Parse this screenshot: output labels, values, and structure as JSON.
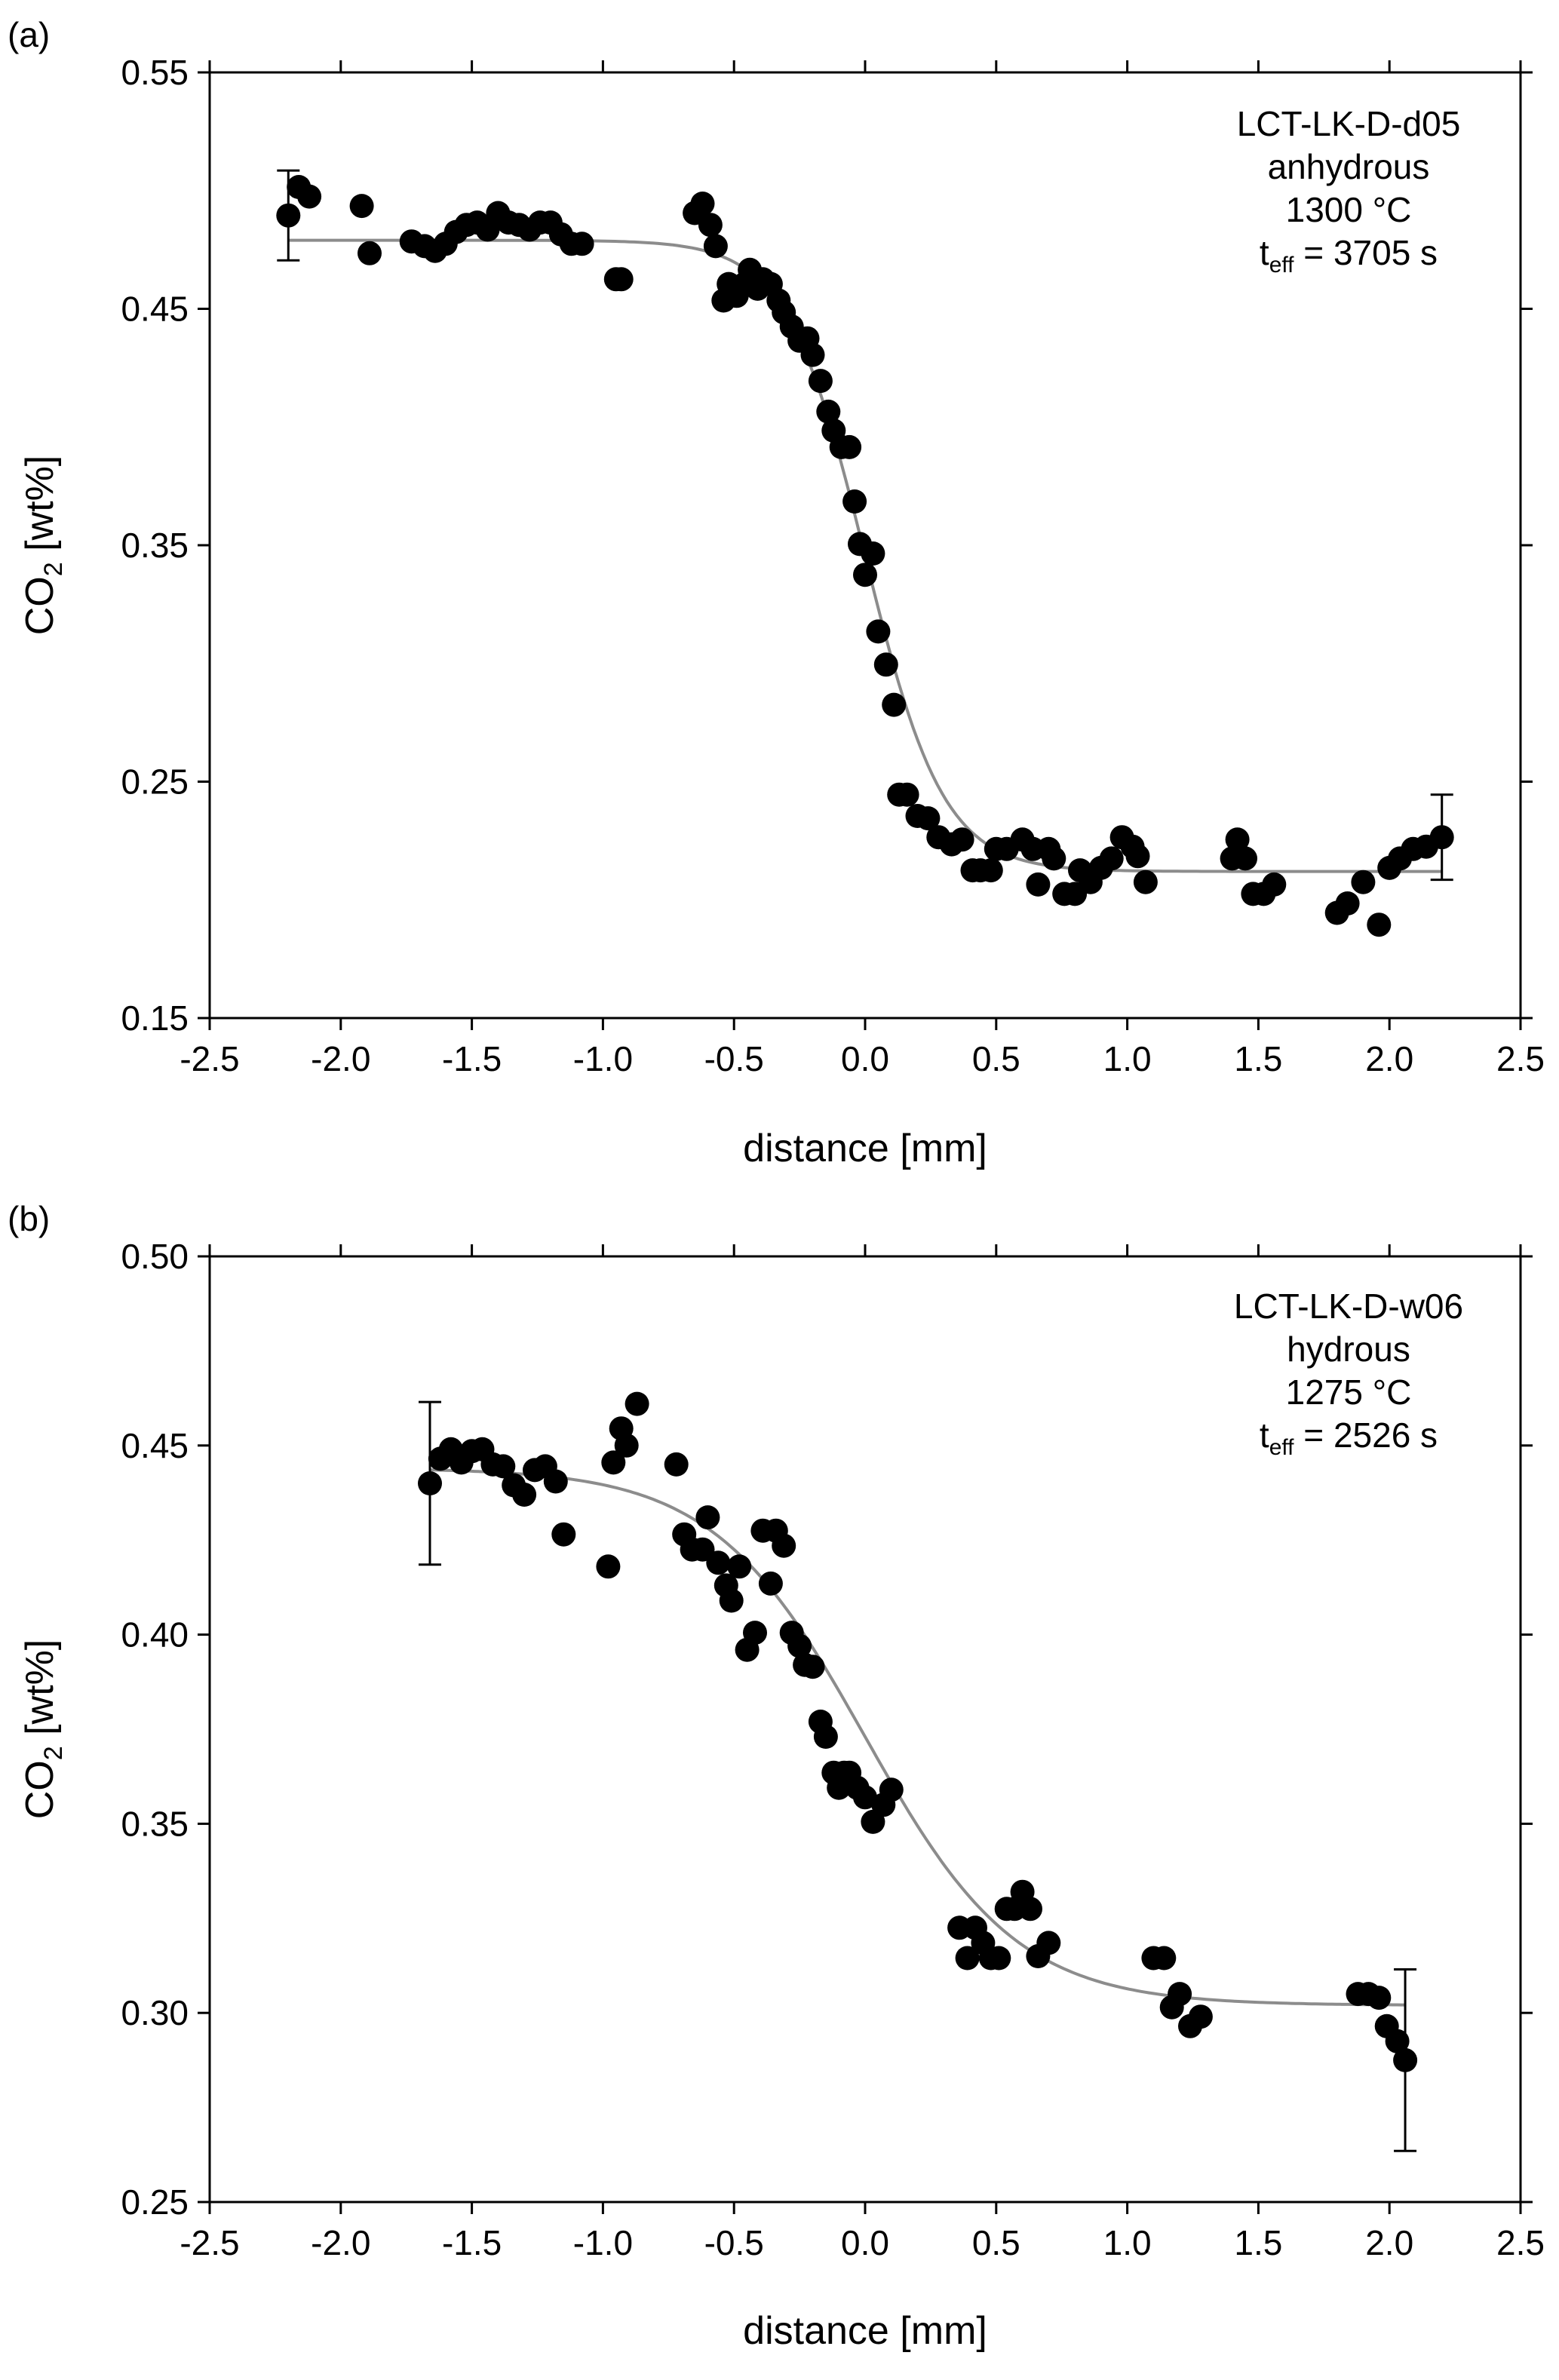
{
  "chart_data": [
    {
      "type": "scatter",
      "panel_label": "(a)",
      "title": "",
      "xlabel": "distance [mm]",
      "ylabel_main": "CO",
      "ylabel_sub": "2",
      "ylabel_unit": " [wt%]",
      "xlim": [
        -2.5,
        2.5
      ],
      "ylim": [
        0.15,
        0.55
      ],
      "xticks": [
        -2.5,
        -2.0,
        -1.5,
        -1.0,
        -0.5,
        0.0,
        0.5,
        1.0,
        1.5,
        2.0,
        2.5
      ],
      "xtick_labels": [
        "-2.5",
        "-2.0",
        "-1.5",
        "-1.0",
        "-0.5",
        "0.0",
        "0.5",
        "1.0",
        "1.5",
        "2.0",
        "2.5"
      ],
      "yticks": [
        0.15,
        0.25,
        0.35,
        0.45,
        0.55
      ],
      "ytick_labels": [
        "0.15",
        "0.25",
        "0.35",
        "0.45",
        "0.55"
      ],
      "annotation": {
        "sample": "LCT-LK-D-d05",
        "condition": "anhydrous",
        "temperature": "1300 °C",
        "time_prefix": "t",
        "time_sub": "eff",
        "time_value": " = 3705 s"
      },
      "fit": {
        "name": "diffusion fit",
        "x_range": [
          -2.2,
          2.2
        ],
        "plateau_left": 0.479,
        "plateau_right": 0.212,
        "center": 0.0,
        "width": 0.3
      },
      "error_bars": [
        {
          "x": -2.2,
          "y": 0.4895,
          "low": 0.4705,
          "high": 0.5085
        },
        {
          "x": 2.2,
          "y": 0.2265,
          "low": 0.2085,
          "high": 0.2445
        }
      ],
      "series": [
        {
          "name": "measured CO2",
          "points": [
            [
              -2.2,
              0.4895
            ],
            [
              -2.16,
              0.5015
            ],
            [
              -2.12,
              0.4975
            ],
            [
              -1.92,
              0.4935
            ],
            [
              -1.89,
              0.4735
            ],
            [
              -1.73,
              0.4785
            ],
            [
              -1.68,
              0.4765
            ],
            [
              -1.64,
              0.4745
            ],
            [
              -1.6,
              0.4775
            ],
            [
              -1.56,
              0.4825
            ],
            [
              -1.52,
              0.4855
            ],
            [
              -1.48,
              0.4865
            ],
            [
              -1.44,
              0.4835
            ],
            [
              -1.4,
              0.4905
            ],
            [
              -1.36,
              0.4865
            ],
            [
              -1.32,
              0.4855
            ],
            [
              -1.28,
              0.4835
            ],
            [
              -1.24,
              0.4865
            ],
            [
              -1.2,
              0.4865
            ],
            [
              -1.16,
              0.4815
            ],
            [
              -1.12,
              0.4775
            ],
            [
              -1.08,
              0.4775
            ],
            [
              -0.95,
              0.4625
            ],
            [
              -0.93,
              0.4625
            ],
            [
              -0.65,
              0.4905
            ],
            [
              -0.62,
              0.4945
            ],
            [
              -0.59,
              0.4855
            ],
            [
              -0.57,
              0.4765
            ],
            [
              -0.54,
              0.4535
            ],
            [
              -0.52,
              0.4605
            ],
            [
              -0.49,
              0.4555
            ],
            [
              -0.46,
              0.4605
            ],
            [
              -0.44,
              0.4665
            ],
            [
              -0.41,
              0.4585
            ],
            [
              -0.39,
              0.4625
            ],
            [
              -0.36,
              0.4605
            ],
            [
              -0.33,
              0.4535
            ],
            [
              -0.31,
              0.4485
            ],
            [
              -0.28,
              0.4425
            ],
            [
              -0.25,
              0.4365
            ],
            [
              -0.22,
              0.4375
            ],
            [
              -0.2,
              0.4305
            ],
            [
              -0.17,
              0.4195
            ],
            [
              -0.14,
              0.4065
            ],
            [
              -0.12,
              0.3985
            ],
            [
              -0.09,
              0.3915
            ],
            [
              -0.06,
              0.3915
            ],
            [
              -0.04,
              0.3685
            ],
            [
              -0.02,
              0.3505
            ],
            [
              0.0,
              0.3375
            ],
            [
              0.03,
              0.3465
            ],
            [
              0.05,
              0.3135
            ],
            [
              0.08,
              0.2995
            ],
            [
              0.11,
              0.2825
            ],
            [
              0.13,
              0.2445
            ],
            [
              0.16,
              0.2445
            ],
            [
              0.2,
              0.2355
            ],
            [
              0.24,
              0.2345
            ],
            [
              0.28,
              0.2265
            ],
            [
              0.33,
              0.2235
            ],
            [
              0.37,
              0.2255
            ],
            [
              0.41,
              0.2125
            ],
            [
              0.44,
              0.2125
            ],
            [
              0.48,
              0.2125
            ],
            [
              0.5,
              0.2215
            ],
            [
              0.54,
              0.2215
            ],
            [
              0.6,
              0.2255
            ],
            [
              0.64,
              0.2215
            ],
            [
              0.66,
              0.2065
            ],
            [
              0.7,
              0.2215
            ],
            [
              0.72,
              0.2175
            ],
            [
              0.76,
              0.2025
            ],
            [
              0.8,
              0.2025
            ],
            [
              0.82,
              0.2125
            ],
            [
              0.86,
              0.2075
            ],
            [
              0.9,
              0.2135
            ],
            [
              0.94,
              0.2175
            ],
            [
              0.98,
              0.2265
            ],
            [
              1.02,
              0.2225
            ],
            [
              1.04,
              0.2185
            ],
            [
              1.07,
              0.2075
            ],
            [
              1.4,
              0.2175
            ],
            [
              1.42,
              0.2255
            ],
            [
              1.45,
              0.2175
            ],
            [
              1.48,
              0.2025
            ],
            [
              1.52,
              0.2025
            ],
            [
              1.56,
              0.2065
            ],
            [
              1.8,
              0.1945
            ],
            [
              1.84,
              0.1985
            ],
            [
              1.9,
              0.2075
            ],
            [
              1.96,
              0.1895
            ],
            [
              2.0,
              0.2135
            ],
            [
              2.04,
              0.2175
            ],
            [
              2.09,
              0.2215
            ],
            [
              2.14,
              0.2225
            ],
            [
              2.2,
              0.2265
            ]
          ]
        }
      ]
    },
    {
      "type": "scatter",
      "panel_label": "(b)",
      "title": "",
      "xlabel": "distance [mm]",
      "ylabel_main": "CO",
      "ylabel_sub": "2",
      "ylabel_unit": " [wt%]",
      "xlim": [
        -2.5,
        2.5
      ],
      "ylim": [
        0.25,
        0.5
      ],
      "xticks": [
        -2.5,
        -2.0,
        -1.5,
        -1.0,
        -0.5,
        0.0,
        0.5,
        1.0,
        1.5,
        2.0,
        2.5
      ],
      "xtick_labels": [
        "-2.5",
        "-2.0",
        "-1.5",
        "-1.0",
        "-0.5",
        "0.0",
        "0.5",
        "1.0",
        "1.5",
        "2.0",
        "2.5"
      ],
      "yticks": [
        0.25,
        0.3,
        0.35,
        0.4,
        0.45,
        0.5
      ],
      "ytick_labels": [
        "0.25",
        "0.30",
        "0.35",
        "0.40",
        "0.45",
        "0.50"
      ],
      "annotation": {
        "sample": "LCT-LK-D-w06",
        "condition": "hydrous",
        "temperature": "1275 °C",
        "time_prefix": "t",
        "time_sub": "eff",
        "time_value": " = 2526 s"
      },
      "fit": {
        "name": "diffusion fit",
        "x_range": [
          -1.66,
          2.06
        ],
        "plateau_left": 0.444,
        "plateau_right": 0.302,
        "center": 0.0,
        "width": 0.58
      },
      "error_bars": [
        {
          "x": -1.66,
          "y": 0.44,
          "low": 0.4185,
          "high": 0.4615
        },
        {
          "x": 2.06,
          "y": 0.2875,
          "low": 0.2635,
          "high": 0.3115
        }
      ],
      "series": [
        {
          "name": "measured CO2",
          "points": [
            [
              -1.66,
              0.44
            ],
            [
              -1.62,
              0.4465
            ],
            [
              -1.58,
              0.449
            ],
            [
              -1.54,
              0.4455
            ],
            [
              -1.5,
              0.4485
            ],
            [
              -1.46,
              0.449
            ],
            [
              -1.42,
              0.445
            ],
            [
              -1.38,
              0.4445
            ],
            [
              -1.34,
              0.4395
            ],
            [
              -1.3,
              0.437
            ],
            [
              -1.26,
              0.4435
            ],
            [
              -1.22,
              0.4445
            ],
            [
              -1.18,
              0.4405
            ],
            [
              -1.15,
              0.4265
            ],
            [
              -0.98,
              0.418
            ],
            [
              -0.96,
              0.4455
            ],
            [
              -0.93,
              0.4545
            ],
            [
              -0.91,
              0.45
            ],
            [
              -0.87,
              0.461
            ],
            [
              -0.72,
              0.445
            ],
            [
              -0.69,
              0.4265
            ],
            [
              -0.66,
              0.4225
            ],
            [
              -0.62,
              0.4225
            ],
            [
              -0.6,
              0.431
            ],
            [
              -0.56,
              0.419
            ],
            [
              -0.53,
              0.413
            ],
            [
              -0.51,
              0.409
            ],
            [
              -0.48,
              0.418
            ],
            [
              -0.45,
              0.396
            ],
            [
              -0.42,
              0.4005
            ],
            [
              -0.39,
              0.4275
            ],
            [
              -0.36,
              0.4135
            ],
            [
              -0.34,
              0.4275
            ],
            [
              -0.31,
              0.4235
            ],
            [
              -0.28,
              0.4005
            ],
            [
              -0.25,
              0.397
            ],
            [
              -0.23,
              0.392
            ],
            [
              -0.2,
              0.3915
            ],
            [
              -0.17,
              0.377
            ],
            [
              -0.15,
              0.373
            ],
            [
              -0.12,
              0.3635
            ],
            [
              -0.1,
              0.3595
            ],
            [
              -0.08,
              0.3635
            ],
            [
              -0.06,
              0.3635
            ],
            [
              -0.03,
              0.3595
            ],
            [
              0.0,
              0.357
            ],
            [
              0.03,
              0.3505
            ],
            [
              0.07,
              0.355
            ],
            [
              0.1,
              0.359
            ],
            [
              0.36,
              0.3225
            ],
            [
              0.39,
              0.3145
            ],
            [
              0.42,
              0.3225
            ],
            [
              0.45,
              0.3185
            ],
            [
              0.48,
              0.3145
            ],
            [
              0.51,
              0.3145
            ],
            [
              0.54,
              0.3275
            ],
            [
              0.57,
              0.3275
            ],
            [
              0.6,
              0.332
            ],
            [
              0.63,
              0.3275
            ],
            [
              0.66,
              0.315
            ],
            [
              0.7,
              0.3185
            ],
            [
              1.1,
              0.3145
            ],
            [
              1.14,
              0.3145
            ],
            [
              1.17,
              0.3015
            ],
            [
              1.2,
              0.305
            ],
            [
              1.24,
              0.2965
            ],
            [
              1.28,
              0.299
            ],
            [
              1.88,
              0.305
            ],
            [
              1.92,
              0.305
            ],
            [
              1.96,
              0.304
            ],
            [
              1.99,
              0.2965
            ],
            [
              2.03,
              0.2925
            ],
            [
              2.06,
              0.2875
            ]
          ]
        }
      ]
    }
  ]
}
